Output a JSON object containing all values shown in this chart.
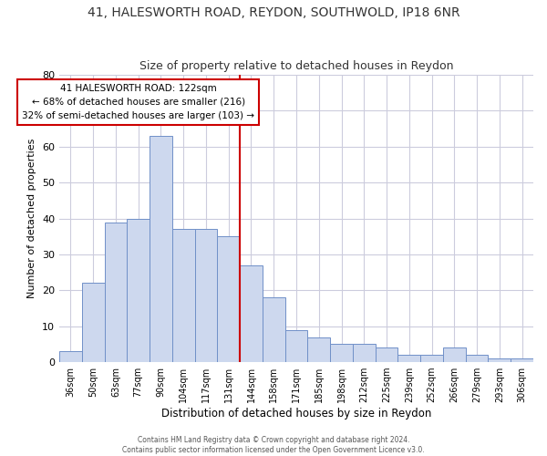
{
  "title1": "41, HALESWORTH ROAD, REYDON, SOUTHWOLD, IP18 6NR",
  "title2": "Size of property relative to detached houses in Reydon",
  "xlabel": "Distribution of detached houses by size in Reydon",
  "ylabel": "Number of detached properties",
  "bar_color": "#cdd8ee",
  "bar_edge_color": "#7090c8",
  "categories": [
    "36sqm",
    "50sqm",
    "63sqm",
    "77sqm",
    "90sqm",
    "104sqm",
    "117sqm",
    "131sqm",
    "144sqm",
    "158sqm",
    "171sqm",
    "185sqm",
    "198sqm",
    "212sqm",
    "225sqm",
    "239sqm",
    "252sqm",
    "266sqm",
    "279sqm",
    "293sqm",
    "306sqm"
  ],
  "values": [
    3,
    22,
    39,
    40,
    63,
    37,
    37,
    35,
    27,
    18,
    9,
    7,
    5,
    5,
    4,
    2,
    2,
    4,
    2,
    1,
    1
  ],
  "vline_x": 7.5,
  "vline_color": "#cc0000",
  "ylim": [
    0,
    80
  ],
  "yticks": [
    0,
    10,
    20,
    30,
    40,
    50,
    60,
    70,
    80
  ],
  "annotation_text": "41 HALESWORTH ROAD: 122sqm\n← 68% of detached houses are smaller (216)\n32% of semi-detached houses are larger (103) →",
  "footnote": "Contains HM Land Registry data © Crown copyright and database right 2024.\nContains public sector information licensed under the Open Government Licence v3.0.",
  "bg_color": "#ffffff",
  "grid_color": "#ccccdd",
  "title1_fontsize": 10,
  "title2_fontsize": 9
}
